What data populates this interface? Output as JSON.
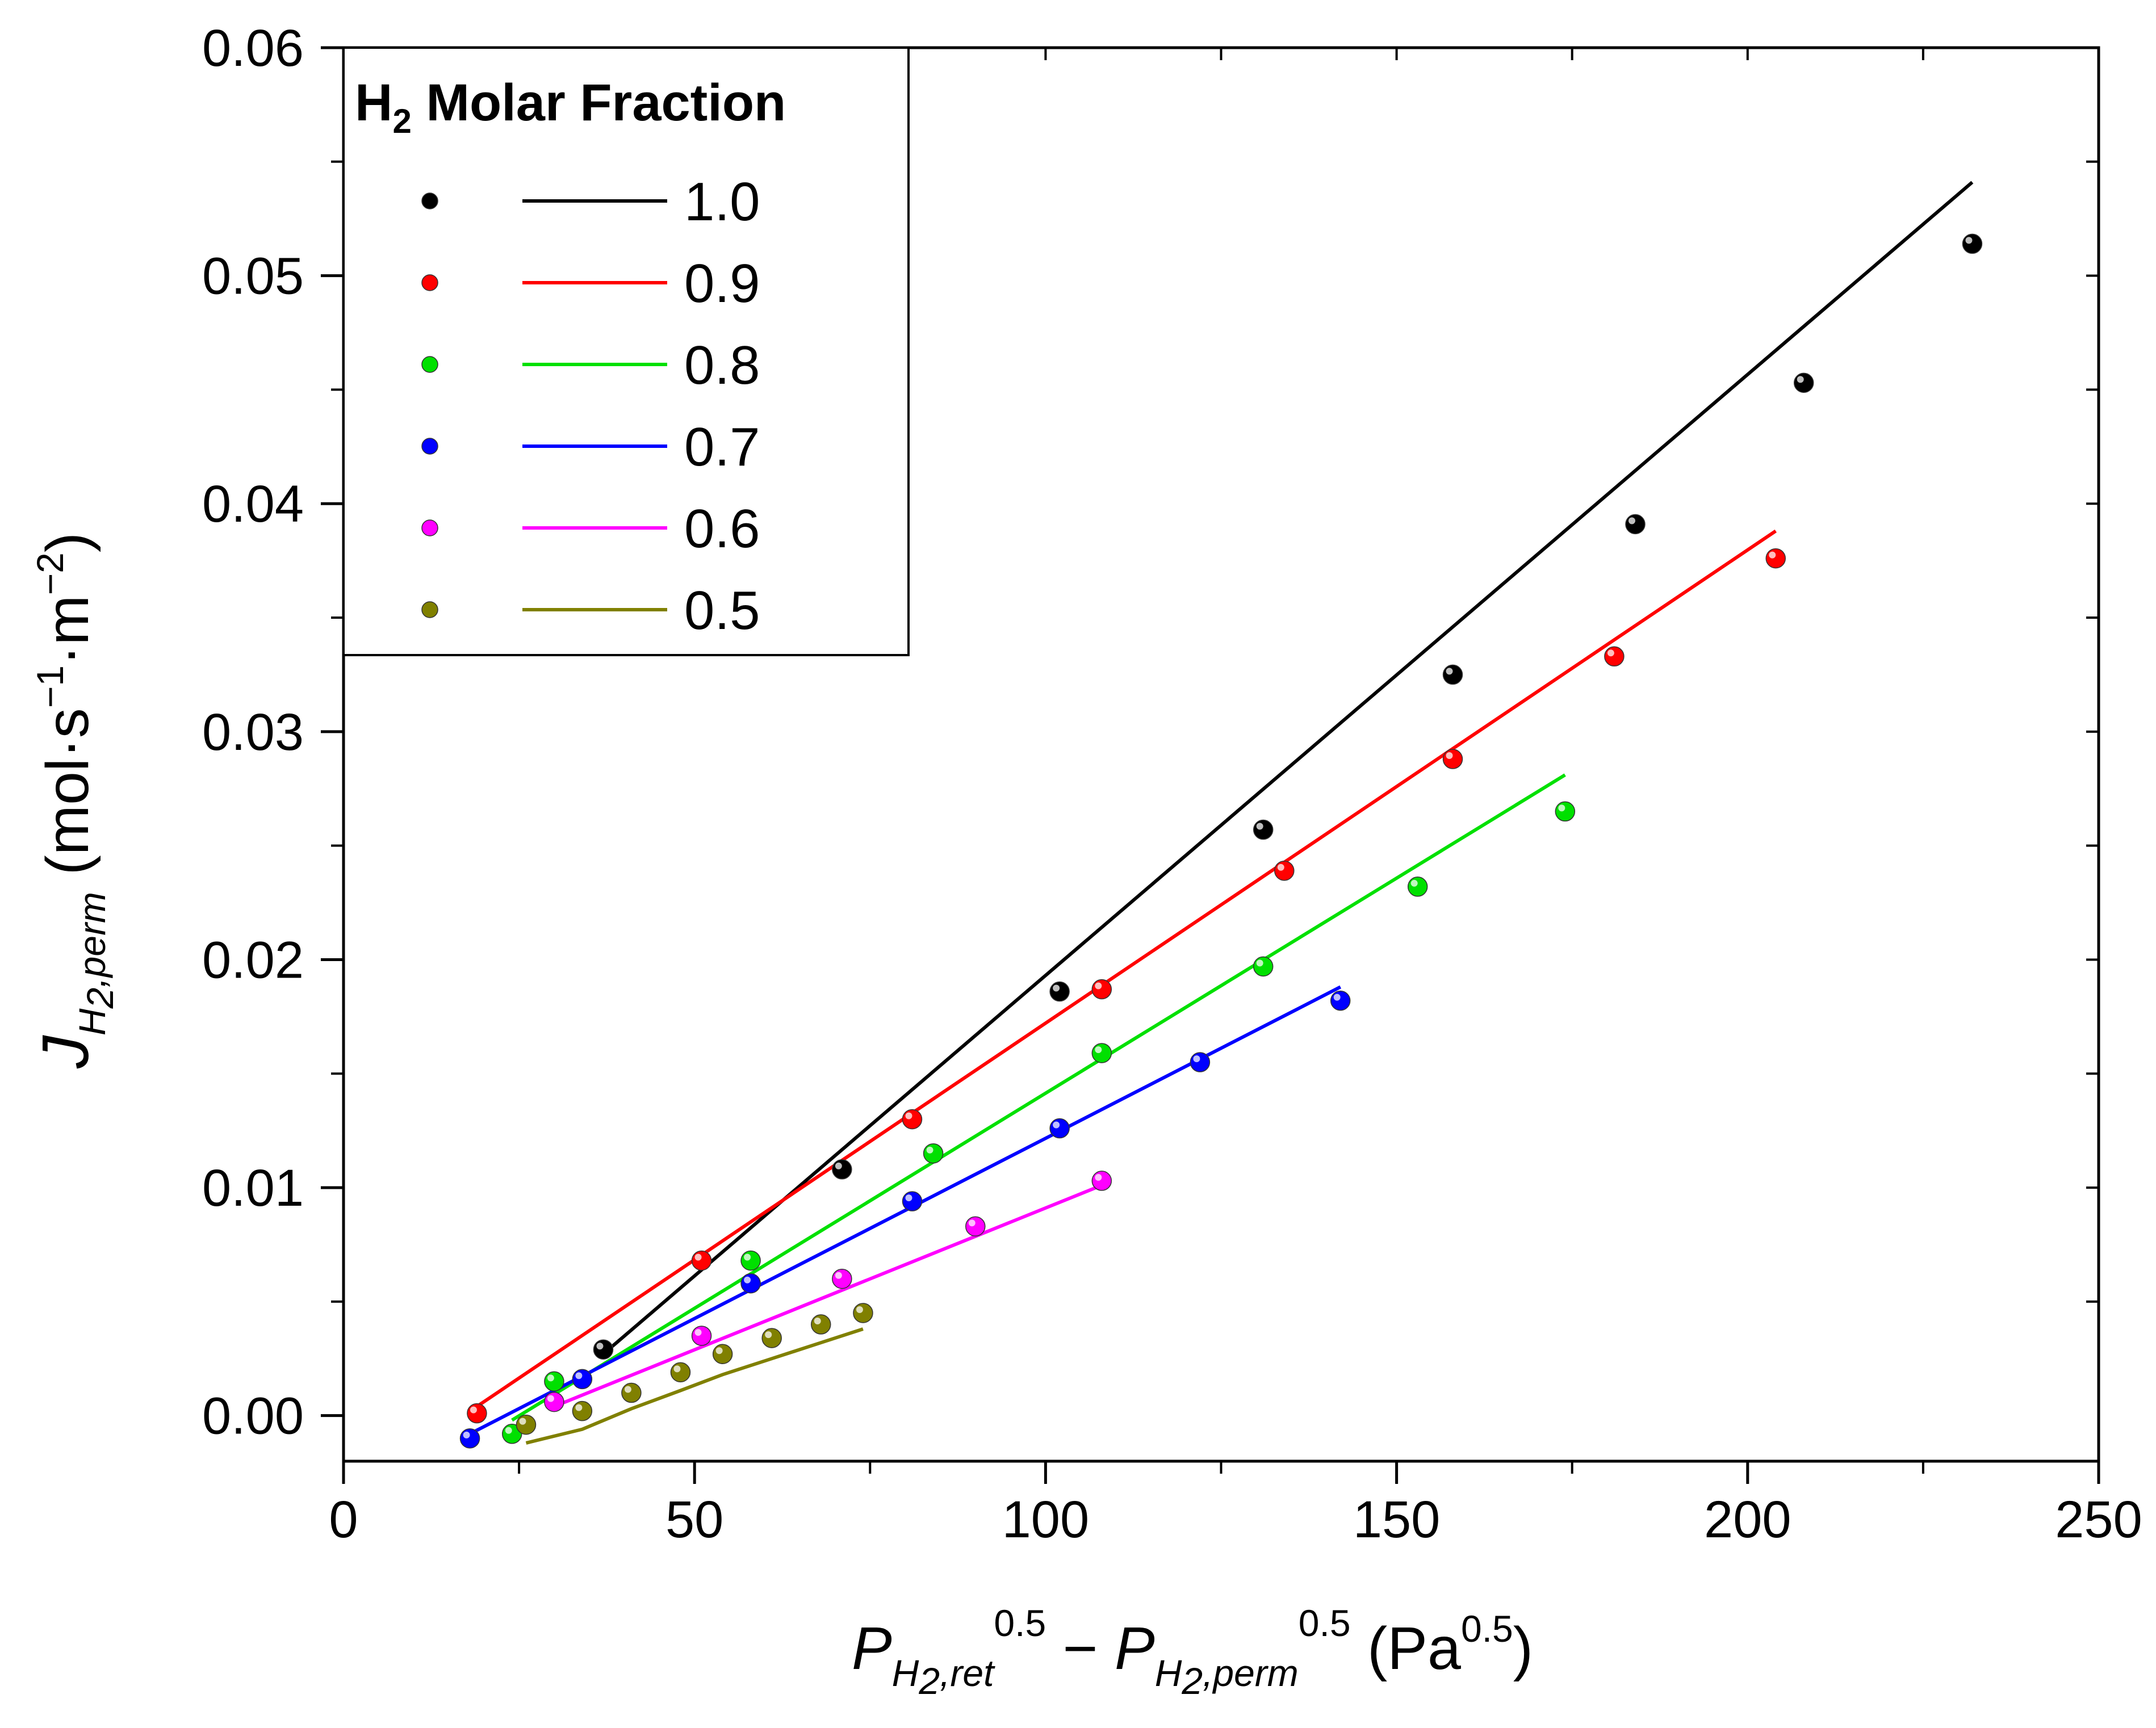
{
  "chart_data": {
    "type": "scatter",
    "title": "",
    "xlabel": {
      "prefix": "P",
      "sub1": "H",
      "sub1_small": "2",
      "sub1_rest": ",ret",
      "sup1": "0.5",
      "minus": " − ",
      "prefix2": "P",
      "sub2": "H",
      "sub2_small": "2",
      "sub2_rest": ",perm",
      "sup2": "0.5",
      "unit_open": " (Pa",
      "unit_sup": "0.5",
      "unit_close": ")"
    },
    "ylabel": {
      "prefix": "J",
      "sub": "H",
      "sub_small": "2",
      "sub_rest": ",perm",
      "unit": " (mol·s",
      "sup1": "−1",
      "unit_mid": "·m",
      "sup2": "−2",
      "unit_close": ")"
    },
    "xlim": [
      0,
      250
    ],
    "ylim": [
      -0.002,
      0.06
    ],
    "x_ticks": [
      0,
      50,
      100,
      150,
      200,
      250
    ],
    "x_tick_labels": [
      "0",
      "50",
      "100",
      "150",
      "200",
      "250"
    ],
    "y_ticks": [
      0.0,
      0.01,
      0.02,
      0.03,
      0.04,
      0.05,
      0.06
    ],
    "y_tick_labels": [
      "0.00",
      "0.01",
      "0.02",
      "0.03",
      "0.04",
      "0.05",
      "0.06"
    ],
    "legend": {
      "title_main": "H",
      "title_sub": "2",
      "title_rest": " Molar Fraction",
      "placement": "top-left"
    },
    "series": [
      {
        "name": "1.0",
        "color": "#000000",
        "points": [
          [
            37,
            0.0029
          ],
          [
            71,
            0.0108
          ],
          [
            102,
            0.0186
          ],
          [
            131,
            0.0257
          ],
          [
            158,
            0.0325
          ],
          [
            184,
            0.0391
          ],
          [
            208,
            0.0453
          ],
          [
            232,
            0.0514
          ]
        ],
        "fit": [
          [
            37,
            0.0027
          ],
          [
            232,
            0.0541
          ]
        ]
      },
      {
        "name": "0.9",
        "color": "#ff0000",
        "points": [
          [
            19,
            0.0001
          ],
          [
            51,
            0.0068
          ],
          [
            81,
            0.013
          ],
          [
            108,
            0.0187
          ],
          [
            134,
            0.0239
          ],
          [
            158,
            0.0288
          ],
          [
            181,
            0.0333
          ],
          [
            204,
            0.0376
          ]
        ],
        "fit": [
          [
            19,
            0.0004
          ],
          [
            204,
            0.0388
          ]
        ]
      },
      {
        "name": "0.8",
        "color": "#00e000",
        "points": [
          [
            24,
            -0.0008
          ],
          [
            30,
            0.0015
          ],
          [
            58,
            0.0068
          ],
          [
            84,
            0.0115
          ],
          [
            108,
            0.0159
          ],
          [
            131,
            0.0197
          ],
          [
            153,
            0.0232
          ],
          [
            174,
            0.0265
          ]
        ],
        "fit": [
          [
            24,
            -0.0002
          ],
          [
            174,
            0.0281
          ]
        ]
      },
      {
        "name": "0.7",
        "color": "#0000ff",
        "points": [
          [
            18,
            -0.001
          ],
          [
            34,
            0.0016
          ],
          [
            58,
            0.0058
          ],
          [
            81,
            0.0094
          ],
          [
            102,
            0.0126
          ],
          [
            122,
            0.0155
          ],
          [
            142,
            0.0182
          ]
        ],
        "fit": [
          [
            18,
            -0.0008
          ],
          [
            142,
            0.0188
          ]
        ]
      },
      {
        "name": "0.6",
        "color": "#ff00ff",
        "points": [
          [
            30,
            0.0006
          ],
          [
            51,
            0.0035
          ],
          [
            71,
            0.006
          ],
          [
            90,
            0.0083
          ],
          [
            108,
            0.0103
          ]
        ],
        "fit": [
          [
            30,
            0.0004
          ],
          [
            108,
            0.0101
          ]
        ]
      },
      {
        "name": "0.5",
        "color": "#808000",
        "points": [
          [
            26,
            -0.0004
          ],
          [
            34,
            0.0002
          ],
          [
            41,
            0.001
          ],
          [
            48,
            0.0019
          ],
          [
            54,
            0.0027
          ],
          [
            61,
            0.0034
          ],
          [
            68,
            0.004
          ],
          [
            74,
            0.0045
          ]
        ],
        "fit": [
          [
            26,
            -0.0012
          ],
          [
            34,
            -0.0006
          ],
          [
            41,
            0.0003
          ],
          [
            48,
            0.0011
          ],
          [
            54,
            0.0018
          ],
          [
            61,
            0.0025
          ],
          [
            68,
            0.0032
          ],
          [
            74,
            0.0038
          ]
        ]
      }
    ]
  }
}
